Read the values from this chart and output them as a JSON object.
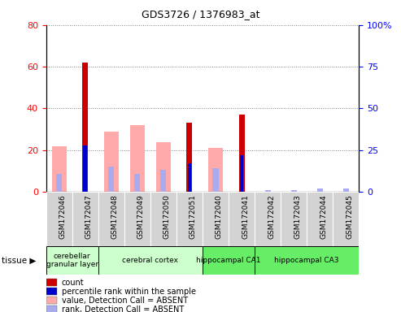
{
  "title": "GDS3726 / 1376983_at",
  "samples": [
    "GSM172046",
    "GSM172047",
    "GSM172048",
    "GSM172049",
    "GSM172050",
    "GSM172051",
    "GSM172040",
    "GSM172041",
    "GSM172042",
    "GSM172043",
    "GSM172044",
    "GSM172045"
  ],
  "count": [
    0,
    62,
    0,
    0,
    0,
    33,
    0,
    37,
    0,
    0,
    0,
    0
  ],
  "percentile_rank": [
    0,
    28,
    0,
    0,
    0,
    17,
    0,
    22,
    0,
    0,
    0,
    0
  ],
  "absent_value": [
    22,
    0,
    29,
    32,
    24,
    0,
    21,
    0,
    0,
    0,
    0,
    0
  ],
  "absent_rank": [
    11,
    0,
    15,
    11,
    13,
    0,
    14,
    0,
    1,
    1,
    2,
    2
  ],
  "tissue_groups": [
    {
      "name": "cerebellar\ngranular layer",
      "cols": [
        0,
        1
      ],
      "color": "#ccffcc"
    },
    {
      "name": "cerebral cortex",
      "cols": [
        2,
        3,
        4,
        5
      ],
      "color": "#ccffcc"
    },
    {
      "name": "hippocampal CA1",
      "cols": [
        6,
        7
      ],
      "color": "#66ee66"
    },
    {
      "name": "hippocampal CA3",
      "cols": [
        8,
        9,
        10,
        11
      ],
      "color": "#66ee66"
    }
  ],
  "ylim_left": [
    0,
    80
  ],
  "ylim_right": [
    0,
    100
  ],
  "yticks_left": [
    0,
    20,
    40,
    60,
    80
  ],
  "yticks_right": [
    0,
    25,
    50,
    75,
    100
  ],
  "color_count": "#cc0000",
  "color_rank": "#0000cc",
  "color_absent_value": "#ffaaaa",
  "color_absent_rank": "#aaaaee",
  "legend_items": [
    {
      "color": "#cc0000",
      "label": "count"
    },
    {
      "color": "#0000cc",
      "label": "percentile rank within the sample"
    },
    {
      "color": "#ffaaaa",
      "label": "value, Detection Call = ABSENT"
    },
    {
      "color": "#aaaaee",
      "label": "rank, Detection Call = ABSENT"
    }
  ]
}
